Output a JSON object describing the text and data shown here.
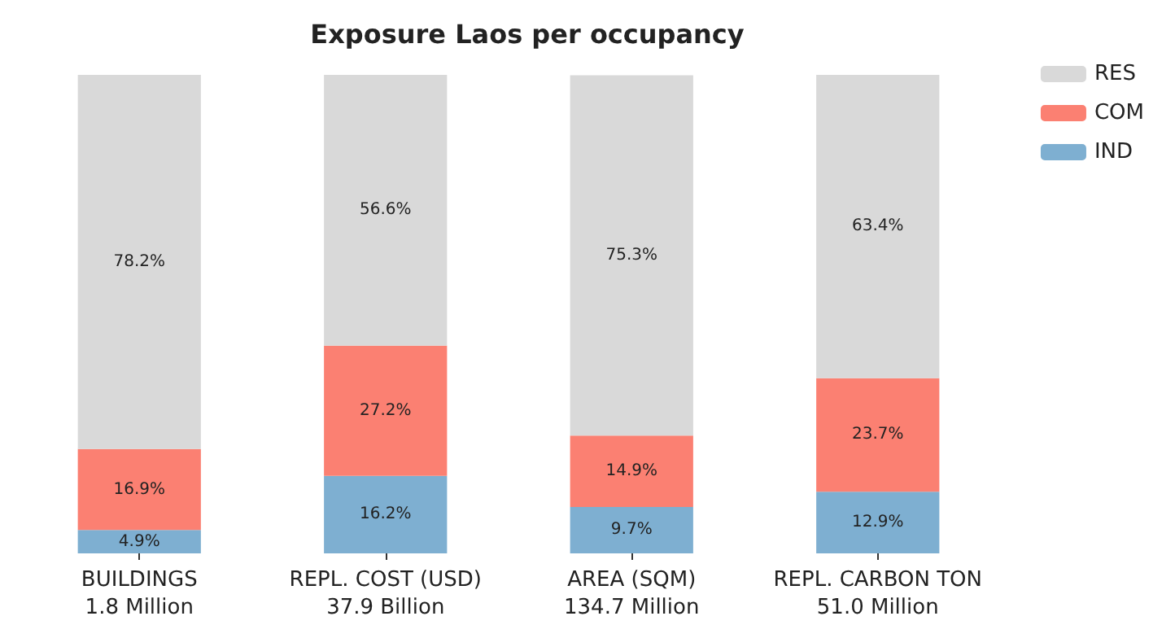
{
  "chart_data": {
    "type": "bar",
    "title": "Exposure Laos per occupancy",
    "categories": [
      "BUILDINGS\n1.8 Million",
      "REPL. COST (USD)\n37.9 Billion",
      "AREA (SQM)\n134.7 Million",
      "REPL. CARBON TON\n51.0 Million"
    ],
    "stacked": true,
    "legend": "top right",
    "series": [
      {
        "name": "IND",
        "color": "#7eafd1",
        "values": [
          4.9,
          16.2,
          9.7,
          12.9
        ],
        "value_labels": [
          "4.9%",
          "16.2%",
          "9.7%",
          "12.9%"
        ]
      },
      {
        "name": "COM",
        "color": "#fb8072",
        "values": [
          16.9,
          27.2,
          14.9,
          23.7
        ],
        "value_labels": [
          "16.9%",
          "27.2%",
          "14.9%",
          "23.7%"
        ]
      },
      {
        "name": "RES",
        "color": "#d9d9d9",
        "values": [
          78.2,
          56.6,
          75.3,
          63.4
        ],
        "value_labels": [
          "78.2%",
          "56.6%",
          "75.3%",
          "63.4%"
        ]
      }
    ]
  }
}
